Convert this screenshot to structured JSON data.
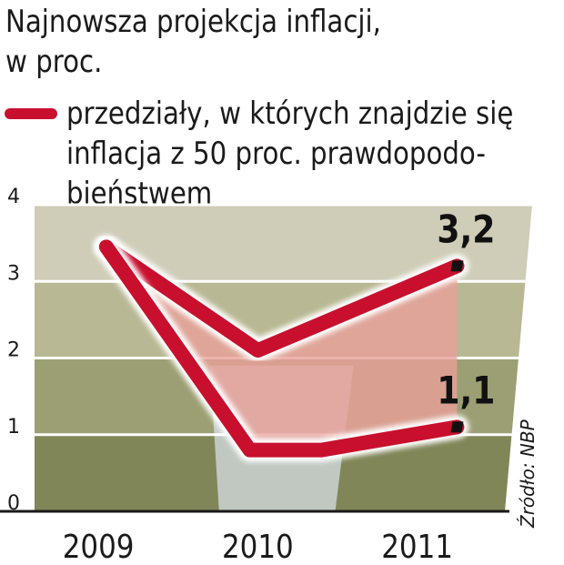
{
  "title_lines": [
    "Najnowsza projekcja inflacji,",
    "w proc."
  ],
  "legend": {
    "lines": [
      "przedziały, w których znajdzie się",
      "inflacja z 50 proc. prawdopodo-",
      "bieństwem"
    ]
  },
  "source": "Źródło: NBP",
  "colors": {
    "band_line": "#c8102e",
    "band_fill": "#e8a09a",
    "plot_top": "#c9c7b3",
    "plot_bottom": "#7f8557",
    "highlight_2010": "#d6dde4"
  },
  "chart_data": {
    "type": "area",
    "ylim": [
      0,
      4
    ],
    "yticks": [
      {
        "value": 0,
        "label": "0"
      },
      {
        "value": 1,
        "label": "1"
      },
      {
        "value": 2,
        "label": "2"
      },
      {
        "value": 3,
        "label": "3"
      },
      {
        "value": 4,
        "label": "4"
      }
    ],
    "xlim": [
      2008.6,
      2011.55
    ],
    "xticks": [
      {
        "value": 2009,
        "label": "2009"
      },
      {
        "value": 2010,
        "label": "2010"
      },
      {
        "value": 2011,
        "label": "2011"
      }
    ],
    "highlight_x": [
      2009.7,
      2010.6
    ],
    "series": [
      {
        "role": "upper",
        "points": [
          [
            2009.05,
            3.45
          ],
          [
            2010.0,
            2.1
          ],
          [
            2010.4,
            2.45
          ],
          [
            2011.25,
            3.2
          ]
        ]
      },
      {
        "role": "lower",
        "points": [
          [
            2009.05,
            3.45
          ],
          [
            2009.95,
            0.8
          ],
          [
            2010.4,
            0.8
          ],
          [
            2011.25,
            1.1
          ]
        ]
      }
    ],
    "annotations": [
      {
        "text": "3,2",
        "x": 2011.25,
        "y": 3.2
      },
      {
        "text": "1,1",
        "x": 2011.25,
        "y": 1.1
      }
    ]
  }
}
